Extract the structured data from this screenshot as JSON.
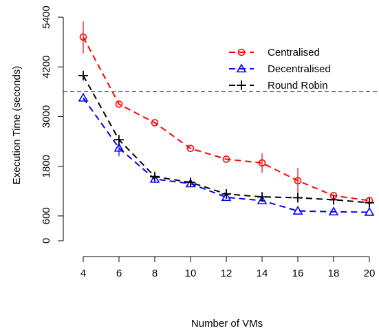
{
  "chart_data": {
    "type": "line",
    "title": "",
    "xlabel": "Number of VMs",
    "ylabel": "Execution Time (seconds)",
    "x": [
      4,
      6,
      8,
      10,
      12,
      14,
      16,
      18,
      20
    ],
    "xlim": [
      4,
      20
    ],
    "ylim": [
      0,
      5400
    ],
    "x_ticks": [
      "4",
      "6",
      "8",
      "10",
      "12",
      "14",
      "16",
      "18",
      "20"
    ],
    "y_ticks": [
      "0",
      "600",
      "1800",
      "3000",
      "4200",
      "5400"
    ],
    "y_tick_values": [
      0,
      600,
      1800,
      3000,
      4200,
      5400
    ],
    "reference_line": 3600,
    "grid": false,
    "legend_position": "top-right",
    "series": [
      {
        "name": "Centralised",
        "color": "#ff0000",
        "marker": "circle",
        "values": [
          4920,
          3300,
          2850,
          2230,
          1970,
          1880,
          1450,
          1090,
          970
        ],
        "error_low": [
          4520,
          3300,
          2850,
          2230,
          1970,
          1640,
          1130,
          1090,
          970
        ],
        "error_high": [
          5300,
          3300,
          2850,
          2230,
          1970,
          2110,
          1760,
          1090,
          970
        ]
      },
      {
        "name": "Decentralised",
        "color": "#0000ff",
        "marker": "triangle",
        "values": [
          3450,
          2240,
          1490,
          1380,
          1050,
          970,
          720,
          700,
          690
        ],
        "error_low": [
          3450,
          2040,
          1490,
          1380,
          1050,
          970,
          720,
          700,
          690
        ],
        "error_high": [
          3450,
          2420,
          1490,
          1380,
          1050,
          970,
          720,
          700,
          690
        ]
      },
      {
        "name": "Round Robin",
        "color": "#000000",
        "marker": "plus",
        "values": [
          3990,
          2440,
          1550,
          1410,
          1130,
          1060,
          1040,
          990,
          920
        ],
        "error_low": [
          3990,
          2440,
          1550,
          1410,
          1130,
          1060,
          1040,
          990,
          920
        ],
        "error_high": [
          3990,
          2440,
          1550,
          1410,
          1130,
          1060,
          1040,
          990,
          920
        ]
      }
    ]
  }
}
